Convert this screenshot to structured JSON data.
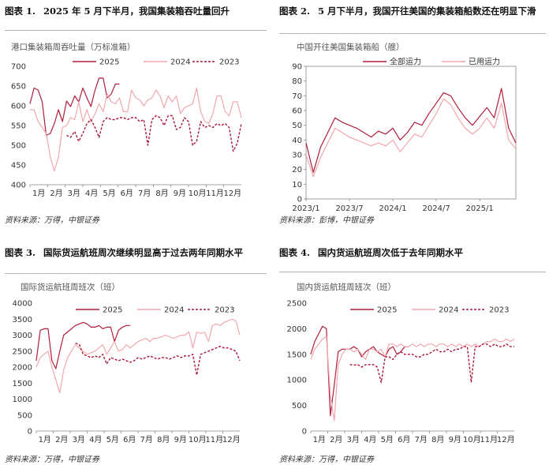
{
  "colors": {
    "s2025": "#b01e3a",
    "s2024": "#f0a7ad",
    "s2023": "#a81638",
    "p2_full": "#b01e3a",
    "p2_used": "#f0a7ad"
  },
  "panels": [
    {
      "title_num": "图表 1.",
      "title_text": "2025 年 5 月下半月，我国集装箱吞吐量回升",
      "unit": "港口集装箱周吞吐量（万标准箱）",
      "source": "资料来源：万得，中银证券"
    },
    {
      "title_num": "图表 2.",
      "title_text": "5 月下半月，我国开往美国的集装箱船数还在明显下滑",
      "unit": "中国开往美国集装箱船（艘）",
      "source": "资料来源：彭博，中银证券"
    },
    {
      "title_num": "图表 3.",
      "title_text": "国际货运航班周次继续明显高于过去两年同期水平",
      "unit": "国际货运航班周班次（班）",
      "source": "资料来源：万得，中银证券"
    },
    {
      "title_num": "图表 4.",
      "title_text": "国内货运航班周次低于去年同期水平",
      "unit": "国内货运航班周班次（班）",
      "source": "资料来源：万得，中银证券"
    }
  ],
  "chart_data": [
    {
      "type": "line",
      "xlim": [
        0,
        52
      ],
      "x_ticks": [
        "1月",
        "2月",
        "3月",
        "4月",
        "5月",
        "6月",
        "7月",
        "8月",
        "9月",
        "10月",
        "11月",
        "12月"
      ],
      "ylim": [
        400,
        700
      ],
      "y_ticks": [
        400,
        450,
        500,
        550,
        600,
        650,
        700
      ],
      "legend": "top-center",
      "series": [
        {
          "name": "2025",
          "style": "solid",
          "x": [
            0,
            1,
            2,
            3,
            4,
            5,
            6,
            7,
            8,
            9,
            10,
            11,
            12,
            13,
            14,
            15,
            16,
            17,
            18,
            19,
            20,
            21,
            22,
            23,
            24
          ],
          "values": [
            605,
            645,
            640,
            610,
            525,
            530,
            555,
            590,
            560,
            612,
            598,
            625,
            610,
            645,
            620,
            598,
            640,
            670,
            670,
            620,
            630,
            655,
            655,
            null,
            null
          ]
        },
        {
          "name": "2024",
          "style": "solid",
          "x": [
            0,
            1,
            2,
            3,
            4,
            5,
            6,
            7,
            8,
            9,
            10,
            11,
            12,
            13,
            14,
            15,
            16,
            17,
            18,
            19,
            20,
            21,
            22,
            23,
            24,
            25,
            26,
            27,
            28,
            29,
            30,
            31,
            32,
            33,
            34,
            35,
            36,
            37,
            38,
            39,
            40,
            41,
            42,
            43,
            44,
            45,
            46,
            47,
            48,
            49,
            50,
            51,
            52
          ],
          "values": [
            590,
            590,
            560,
            545,
            530,
            470,
            435,
            470,
            545,
            550,
            570,
            565,
            610,
            560,
            590,
            560,
            580,
            605,
            585,
            630,
            610,
            605,
            620,
            585,
            585,
            640,
            620,
            615,
            600,
            615,
            620,
            640,
            625,
            595,
            625,
            610,
            625,
            580,
            595,
            600,
            605,
            645,
            585,
            560,
            555,
            580,
            625,
            625,
            585,
            575,
            610,
            610,
            570
          ]
        },
        {
          "name": "2023",
          "style": "dashed",
          "x": [
            9,
            10,
            11,
            12,
            13,
            14,
            15,
            16,
            17,
            18,
            19,
            20,
            21,
            22,
            23,
            24,
            25,
            26,
            27,
            28,
            29,
            30,
            31,
            32,
            33,
            34,
            35,
            36,
            37,
            38,
            39,
            40,
            41,
            42,
            43,
            44,
            45,
            46,
            47,
            48,
            49,
            50,
            51,
            52
          ],
          "values": [
            525,
            520,
            535,
            510,
            530,
            555,
            565,
            545,
            520,
            560,
            570,
            565,
            565,
            570,
            570,
            565,
            570,
            570,
            560,
            565,
            500,
            565,
            575,
            570,
            550,
            575,
            575,
            540,
            545,
            570,
            560,
            500,
            510,
            560,
            545,
            550,
            545,
            555,
            550,
            555,
            545,
            485,
            505,
            555
          ]
        }
      ]
    },
    {
      "type": "line",
      "xlim": [
        "2023/01",
        "2025/06"
      ],
      "x_ticks": [
        "2023/1",
        "2023/7",
        "2024/1",
        "2024/7",
        "2025/1"
      ],
      "ylim": [
        0,
        90
      ],
      "y_ticks": [
        0,
        10,
        20,
        30,
        40,
        50,
        60,
        70,
        80,
        90
      ],
      "legend": "top-center",
      "series": [
        {
          "name": "全部运力",
          "style": "solid",
          "x": [
            "2023/01",
            "2023/02",
            "2023/03",
            "2023/04",
            "2023/05",
            "2023/06",
            "2023/07",
            "2023/08",
            "2023/09",
            "2023/10",
            "2023/11",
            "2023/12",
            "2024/01",
            "2024/02",
            "2024/03",
            "2024/04",
            "2024/05",
            "2024/06",
            "2024/07",
            "2024/08",
            "2024/09",
            "2024/10",
            "2024/11",
            "2024/12",
            "2025/01",
            "2025/02",
            "2025/03",
            "2025/04",
            "2025/05",
            "2025/06"
          ],
          "values": [
            38,
            18,
            35,
            45,
            55,
            52,
            50,
            48,
            45,
            42,
            46,
            44,
            48,
            40,
            45,
            52,
            50,
            58,
            65,
            72,
            70,
            62,
            55,
            50,
            56,
            62,
            55,
            75,
            48,
            38
          ]
        },
        {
          "name": "已用运力",
          "style": "solid",
          "x": [
            "2023/01",
            "2023/02",
            "2023/03",
            "2023/04",
            "2023/05",
            "2023/06",
            "2023/07",
            "2023/08",
            "2023/09",
            "2023/10",
            "2023/11",
            "2023/12",
            "2024/01",
            "2024/02",
            "2024/03",
            "2024/04",
            "2024/05",
            "2024/06",
            "2024/07",
            "2024/08",
            "2024/09",
            "2024/10",
            "2024/11",
            "2024/12",
            "2025/01",
            "2025/02",
            "2025/03",
            "2025/04",
            "2025/05",
            "2025/06"
          ],
          "values": [
            30,
            15,
            28,
            38,
            48,
            45,
            42,
            40,
            38,
            36,
            38,
            36,
            40,
            32,
            38,
            44,
            42,
            50,
            58,
            68,
            64,
            55,
            48,
            44,
            48,
            55,
            48,
            65,
            40,
            34
          ]
        }
      ]
    },
    {
      "type": "line",
      "xlim": [
        0,
        52
      ],
      "x_ticks": [
        "1月",
        "2月",
        "3月",
        "4月",
        "5月",
        "6月",
        "7月",
        "8月",
        "9月",
        "10月",
        "11月",
        "12月"
      ],
      "ylim": [
        0,
        4000
      ],
      "y_ticks": [
        0,
        500,
        1000,
        1500,
        2000,
        2500,
        3000,
        3500,
        4000
      ],
      "legend": "top-center",
      "series": [
        {
          "name": "2025",
          "style": "solid",
          "x": [
            0,
            1,
            2,
            3,
            4,
            5,
            6,
            7,
            8,
            9,
            10,
            11,
            12,
            13,
            14,
            15,
            16,
            17,
            18,
            19,
            20,
            21,
            22,
            23,
            24
          ],
          "values": [
            2200,
            3150,
            3200,
            3200,
            2200,
            1950,
            2500,
            3000,
            3100,
            3200,
            3300,
            3350,
            3400,
            3350,
            3250,
            3250,
            3300,
            3200,
            3250,
            3250,
            2800,
            3150,
            3250,
            3300,
            3300
          ]
        },
        {
          "name": "2024",
          "style": "solid",
          "x": [
            0,
            1,
            2,
            3,
            4,
            5,
            6,
            7,
            8,
            9,
            10,
            11,
            12,
            13,
            14,
            15,
            16,
            17,
            18,
            19,
            20,
            21,
            22,
            23,
            24,
            25,
            26,
            27,
            28,
            29,
            30,
            31,
            32,
            33,
            34,
            35,
            36,
            37,
            38,
            39,
            40,
            41,
            42,
            43,
            44,
            45,
            46,
            47,
            48,
            49,
            50,
            51,
            52
          ],
          "values": [
            2000,
            2300,
            2400,
            2500,
            2000,
            1600,
            1200,
            1900,
            2300,
            2500,
            2700,
            2600,
            2500,
            2400,
            2450,
            2500,
            2600,
            2700,
            2400,
            2600,
            2800,
            2500,
            2550,
            2700,
            2600,
            2700,
            2800,
            2850,
            2900,
            2800,
            2900,
            2900,
            2950,
            3000,
            2950,
            2900,
            2950,
            3000,
            3000,
            3100,
            2600,
            3100,
            3050,
            3100,
            2800,
            3300,
            3350,
            3300,
            3400,
            3450,
            3500,
            3450,
            3000
          ]
        },
        {
          "name": "2023",
          "style": "dashed",
          "x": [
            10,
            11,
            12,
            13,
            14,
            15,
            16,
            17,
            18,
            19,
            20,
            21,
            22,
            23,
            24,
            25,
            26,
            27,
            28,
            29,
            30,
            31,
            32,
            33,
            34,
            35,
            36,
            37,
            38,
            39,
            40,
            41,
            42,
            43,
            44,
            45,
            46,
            47,
            48,
            49,
            50,
            51,
            52
          ],
          "values": [
            2750,
            2700,
            2400,
            2350,
            2300,
            2350,
            2300,
            2400,
            2100,
            2300,
            2250,
            2200,
            2250,
            2200,
            2150,
            2200,
            2300,
            2250,
            2300,
            2350,
            2300,
            2250,
            2300,
            2300,
            2250,
            2300,
            2350,
            2300,
            2350,
            2350,
            2400,
            1750,
            2400,
            2450,
            2500,
            2550,
            2600,
            2650,
            2600,
            2600,
            2550,
            2500,
            2200
          ]
        }
      ]
    },
    {
      "type": "line",
      "xlim": [
        0,
        52
      ],
      "x_ticks": [
        "1月",
        "2月",
        "3月",
        "4月",
        "5月",
        "6月",
        "7月",
        "8月",
        "9月",
        "10月",
        "11月",
        "12月"
      ],
      "ylim": [
        0,
        2500
      ],
      "y_ticks": [
        0,
        500,
        1000,
        1500,
        2000,
        2500
      ],
      "legend": "top-center",
      "series": [
        {
          "name": "2025",
          "style": "solid",
          "x": [
            0,
            1,
            2,
            3,
            4,
            5,
            6,
            7,
            8,
            9,
            10,
            11,
            12,
            13,
            14,
            15,
            16,
            17,
            18,
            19,
            20,
            21,
            22,
            23,
            24,
            25
          ],
          "values": [
            1500,
            1750,
            1900,
            2050,
            2000,
            300,
            900,
            1550,
            1600,
            1600,
            1600,
            1650,
            1600,
            1450,
            1550,
            1600,
            1650,
            1550,
            1500,
            1450,
            1600,
            1650,
            1500,
            1550,
            1650,
            1650
          ]
        },
        {
          "name": "2024",
          "style": "solid",
          "x": [
            0,
            1,
            2,
            3,
            4,
            5,
            6,
            7,
            8,
            9,
            10,
            11,
            12,
            13,
            14,
            15,
            16,
            17,
            18,
            19,
            20,
            21,
            22,
            23,
            24,
            25,
            26,
            27,
            28,
            29,
            30,
            31,
            32,
            33,
            34,
            35,
            36,
            37,
            38,
            39,
            40,
            41,
            42,
            43,
            44,
            45,
            46,
            47,
            48,
            49,
            50,
            51,
            52
          ],
          "values": [
            1400,
            1600,
            1700,
            1800,
            1850,
            700,
            200,
            1300,
            1500,
            1600,
            1600,
            1550,
            1600,
            1500,
            1400,
            1600,
            1600,
            1550,
            1600,
            1450,
            1700,
            1700,
            1650,
            1700,
            1650,
            1650,
            1700,
            1650,
            1700,
            1650,
            1700,
            1700,
            1650,
            1700,
            1700,
            1650,
            1700,
            1650,
            1700,
            1650,
            1700,
            1650,
            1700,
            1650,
            1700,
            1750,
            1750,
            1800,
            1750,
            1750,
            1800,
            1750,
            1800
          ]
        },
        {
          "name": "2023",
          "style": "dashed",
          "x": [
            10,
            11,
            12,
            13,
            14,
            15,
            16,
            17,
            18,
            19,
            20,
            21,
            22,
            23,
            24,
            25,
            26,
            27,
            28,
            29,
            30,
            31,
            32,
            33,
            34,
            35,
            36,
            37,
            38,
            39,
            40,
            41,
            42,
            43,
            44,
            45,
            46,
            47,
            48,
            49,
            50,
            51,
            52
          ],
          "values": [
            1300,
            1290,
            1300,
            1250,
            1300,
            1300,
            1300,
            1250,
            950,
            1450,
            1450,
            1400,
            1500,
            1550,
            1500,
            1500,
            1500,
            1450,
            1450,
            1500,
            1500,
            1550,
            1600,
            1550,
            1550,
            1600,
            1550,
            1600,
            1600,
            1650,
            1650,
            950,
            1650,
            1650,
            1700,
            1700,
            1650,
            1700,
            1650,
            1650,
            1700,
            1650,
            1650
          ]
        }
      ]
    }
  ]
}
